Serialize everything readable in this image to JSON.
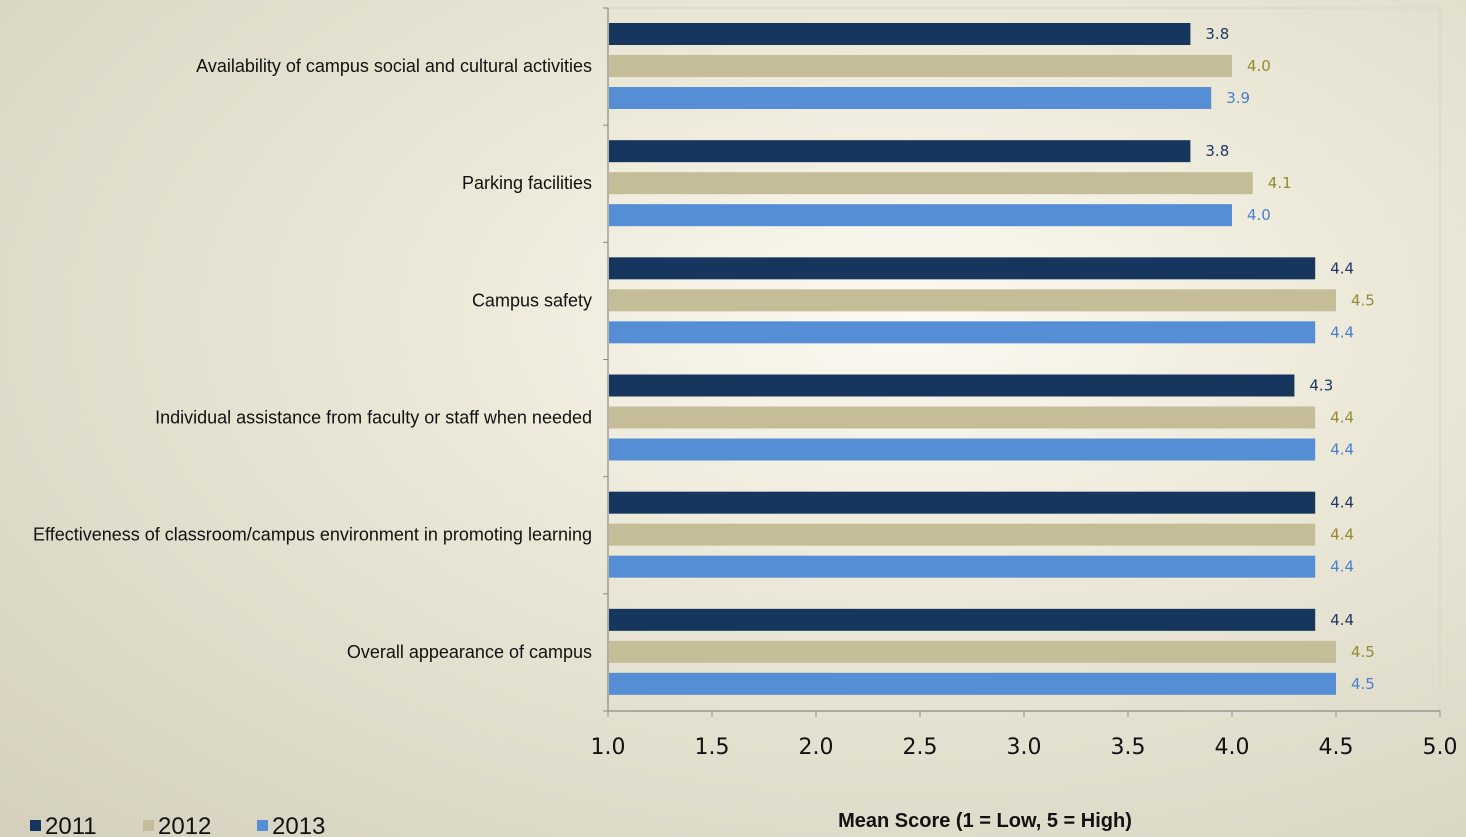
{
  "chart_data": {
    "type": "bar",
    "orientation": "horizontal",
    "categories": [
      "Availability of campus social and cultural activities",
      "Parking facilities",
      "Campus safety",
      "Individual assistance from faculty or staff when needed",
      "Effectiveness of classroom/campus environment in promoting learning",
      "Overall appearance of campus"
    ],
    "series": [
      {
        "name": "2011",
        "color": "#17365d",
        "label_color": "#1f3864",
        "values": [
          3.8,
          3.8,
          4.4,
          4.3,
          4.4,
          4.4
        ],
        "labels": [
          "3.8",
          "3.8",
          "4.4",
          "4.3",
          "4.4",
          "4.4"
        ]
      },
      {
        "name": "2012",
        "color": "#c4bd97",
        "label_color": "#948a30",
        "values": [
          4.0,
          4.1,
          4.5,
          4.4,
          4.4,
          4.5
        ],
        "labels": [
          "4.0",
          "4.1",
          "4.5",
          "4.4",
          "4.4",
          "4.5"
        ]
      },
      {
        "name": "2013",
        "color": "#558ed5",
        "label_color": "#4a7fd0",
        "values": [
          3.9,
          4.0,
          4.4,
          4.4,
          4.4,
          4.5
        ],
        "labels": [
          "3.9",
          "4.0",
          "4.4",
          "4.4",
          "4.4",
          "4.5"
        ]
      }
    ],
    "xlim": [
      1.0,
      5.0
    ],
    "xticks": [
      "1.0",
      "1.5",
      "2.0",
      "2.5",
      "3.0",
      "3.5",
      "4.0",
      "4.5",
      "5.0"
    ],
    "xlabel": "Mean Score (1 = Low, 5 = High)",
    "ylabel": "",
    "title": "",
    "grid": false,
    "legend_position": "bottom-left"
  }
}
